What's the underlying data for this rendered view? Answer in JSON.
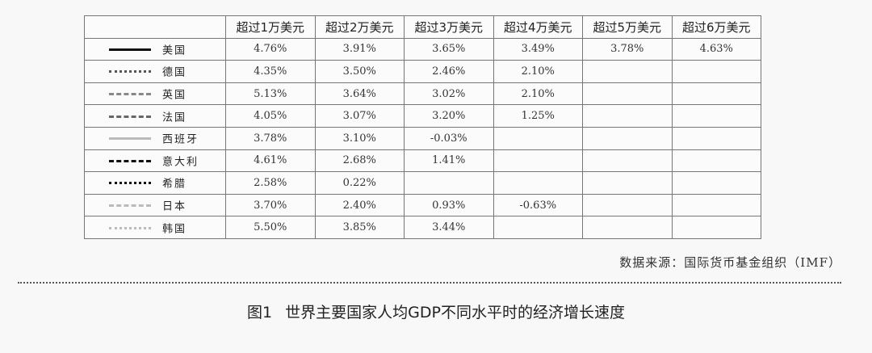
{
  "table": {
    "headers": [
      "",
      "超过1万美元",
      "超过2万美元",
      "超过3万美元",
      "超过4万美元",
      "超过5万美元",
      "超过6万美元"
    ],
    "rows": [
      {
        "country": "美国",
        "line_style": "solid",
        "line_color": "#111111",
        "line_width": 3,
        "values": [
          "4.76%",
          "3.91%",
          "3.65%",
          "3.49%",
          "3.78%",
          "4.63%"
        ]
      },
      {
        "country": "德国",
        "line_style": "dotted",
        "line_color": "#555555",
        "line_width": 3,
        "values": [
          "4.35%",
          "3.50%",
          "2.46%",
          "2.10%",
          "",
          ""
        ]
      },
      {
        "country": "英国",
        "line_style": "dashed",
        "line_color": "#888888",
        "line_width": 3,
        "values": [
          "5.13%",
          "3.64%",
          "3.02%",
          "2.10%",
          "",
          ""
        ]
      },
      {
        "country": "法国",
        "line_style": "dashed",
        "line_color": "#666666",
        "line_width": 3,
        "values": [
          "4.05%",
          "3.07%",
          "3.20%",
          "1.25%",
          "",
          ""
        ]
      },
      {
        "country": "西班牙",
        "line_style": "solid",
        "line_color": "#bbbbbb",
        "line_width": 3,
        "values": [
          "3.78%",
          "3.10%",
          "-0.03%",
          "",
          "",
          ""
        ]
      },
      {
        "country": "意大利",
        "line_style": "dashed",
        "line_color": "#111111",
        "line_width": 3,
        "values": [
          "4.61%",
          "2.68%",
          "1.41%",
          "",
          "",
          ""
        ]
      },
      {
        "country": "希腊",
        "line_style": "dotted",
        "line_color": "#111111",
        "line_width": 3,
        "values": [
          "2.58%",
          "0.22%",
          "",
          "",
          "",
          ""
        ]
      },
      {
        "country": "日本",
        "line_style": "dashed",
        "line_color": "#bbbbbb",
        "line_width": 3,
        "values": [
          "3.70%",
          "2.40%",
          "0.93%",
          "-0.63%",
          "",
          ""
        ]
      },
      {
        "country": "韩国",
        "line_style": "dotted",
        "line_color": "#bbbbbb",
        "line_width": 3,
        "values": [
          "5.50%",
          "3.85%",
          "3.44%",
          "",
          "",
          ""
        ]
      }
    ]
  },
  "source": "数据来源：国际货币基金组织（IMF）",
  "caption": {
    "figure_label": "图1",
    "title": "世界主要国家人均GDP不同水平时的经济增长速度"
  }
}
